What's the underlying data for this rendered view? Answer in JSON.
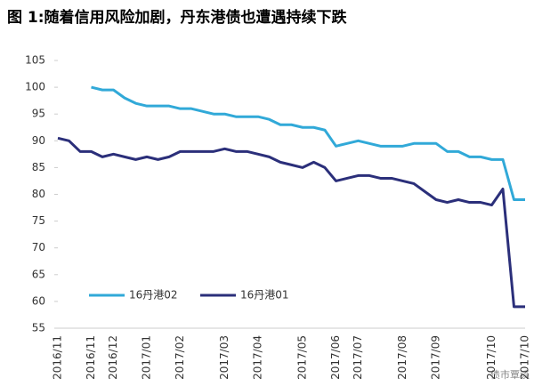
{
  "chart_data": {
    "type": "line",
    "title": "图 1:随着信用风险加剧，丹东港债也遭遇持续下跌",
    "categories": [
      "2016/11",
      null,
      null,
      "2016/11",
      null,
      "2016/12",
      null,
      null,
      "2017/01",
      null,
      null,
      "2017/02",
      null,
      null,
      null,
      "2017/03",
      null,
      null,
      "2017/04",
      null,
      null,
      null,
      "2017/05",
      null,
      null,
      "2017/06",
      null,
      "2017/07",
      null,
      null,
      null,
      "2017/08",
      null,
      null,
      "2017/09",
      null,
      null,
      null,
      null,
      "2017/10",
      null,
      null,
      "2017/10"
    ],
    "series": [
      {
        "name": "16丹港02",
        "color": "#31a9d8",
        "values": [
          null,
          null,
          null,
          100,
          99.5,
          99.5,
          98,
          97,
          96.5,
          96.5,
          96.5,
          96,
          96,
          95.5,
          95,
          95,
          94.5,
          94.5,
          94.5,
          94,
          93,
          93,
          92.5,
          92.5,
          92,
          89,
          89.5,
          90,
          89.5,
          89,
          89,
          89,
          89.5,
          89.5,
          89.5,
          88,
          88,
          87,
          87,
          86.5,
          86.5,
          79,
          79
        ]
      },
      {
        "name": "16丹港01",
        "color": "#2b2f7a",
        "values": [
          90.5,
          90,
          88,
          88,
          87,
          87.5,
          87,
          86.5,
          87,
          86.5,
          87,
          88,
          88,
          88,
          88,
          88.5,
          88,
          88,
          87.5,
          87,
          86,
          85.5,
          85,
          86,
          85,
          82.5,
          83,
          83.5,
          83.5,
          83,
          83,
          82.5,
          82,
          80.5,
          79,
          78.5,
          79,
          78.5,
          78.5,
          78,
          81,
          59,
          59
        ]
      }
    ],
    "ylim": [
      55,
      105
    ],
    "yticks": [
      55,
      60,
      65,
      70,
      75,
      80,
      85,
      90,
      95,
      100,
      105
    ],
    "legend": "lower left",
    "watermark": "债市覃谈"
  }
}
